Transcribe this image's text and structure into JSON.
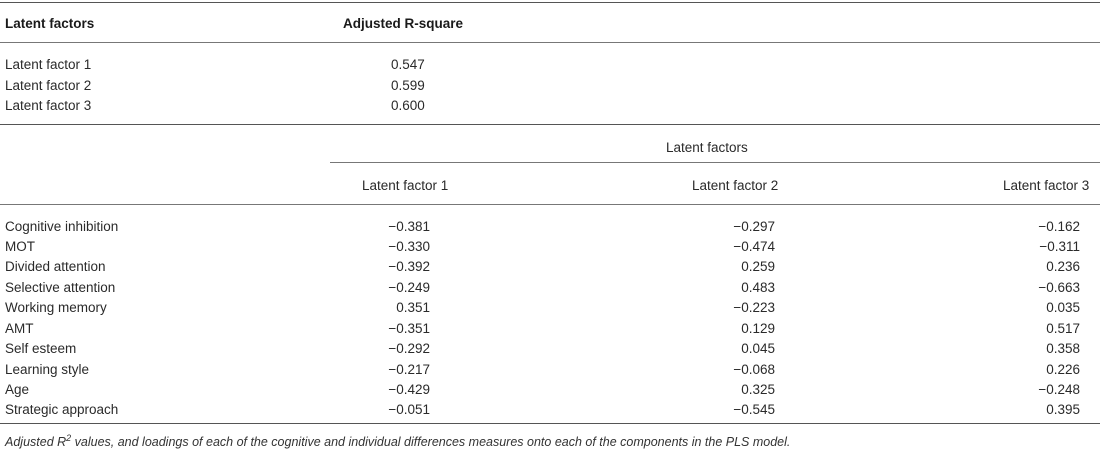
{
  "table1": {
    "headers": [
      "Latent factors",
      "Adjusted R-square"
    ],
    "rows": [
      [
        "Latent factor 1",
        "0.547"
      ],
      [
        "Latent factor 2",
        "0.599"
      ],
      [
        "Latent factor 3",
        "0.600"
      ]
    ]
  },
  "table2": {
    "group_header": "Latent factors",
    "column_headers": [
      "Latent factor 1",
      "Latent factor 2",
      "Latent factor 3"
    ],
    "rows": [
      {
        "label": "Cognitive inhibition",
        "values": [
          "−0.381",
          "−0.297",
          "−0.162"
        ]
      },
      {
        "label": "MOT",
        "values": [
          "−0.330",
          "−0.474",
          "−0.311"
        ]
      },
      {
        "label": "Divided attention",
        "values": [
          "−0.392",
          "0.259",
          "0.236"
        ]
      },
      {
        "label": "Selective attention",
        "values": [
          "−0.249",
          "0.483",
          "−0.663"
        ]
      },
      {
        "label": "Working memory",
        "values": [
          "0.351",
          "−0.223",
          "0.035"
        ]
      },
      {
        "label": "AMT",
        "values": [
          "−0.351",
          "0.129",
          "0.517"
        ]
      },
      {
        "label": "Self esteem",
        "values": [
          "−0.292",
          "0.045",
          "0.358"
        ]
      },
      {
        "label": "Learning style",
        "values": [
          "−0.217",
          "−0.068",
          "0.226"
        ]
      },
      {
        "label": "Age",
        "values": [
          "−0.429",
          "0.325",
          "−0.248"
        ]
      },
      {
        "label": "Strategic approach",
        "values": [
          "−0.051",
          "−0.545",
          "0.395"
        ]
      }
    ]
  },
  "caption": {
    "before": "Adjusted R",
    "sup": "2",
    "after": " values, and loadings of each of the cognitive and individual differences measures onto each of the components in the PLS model."
  }
}
